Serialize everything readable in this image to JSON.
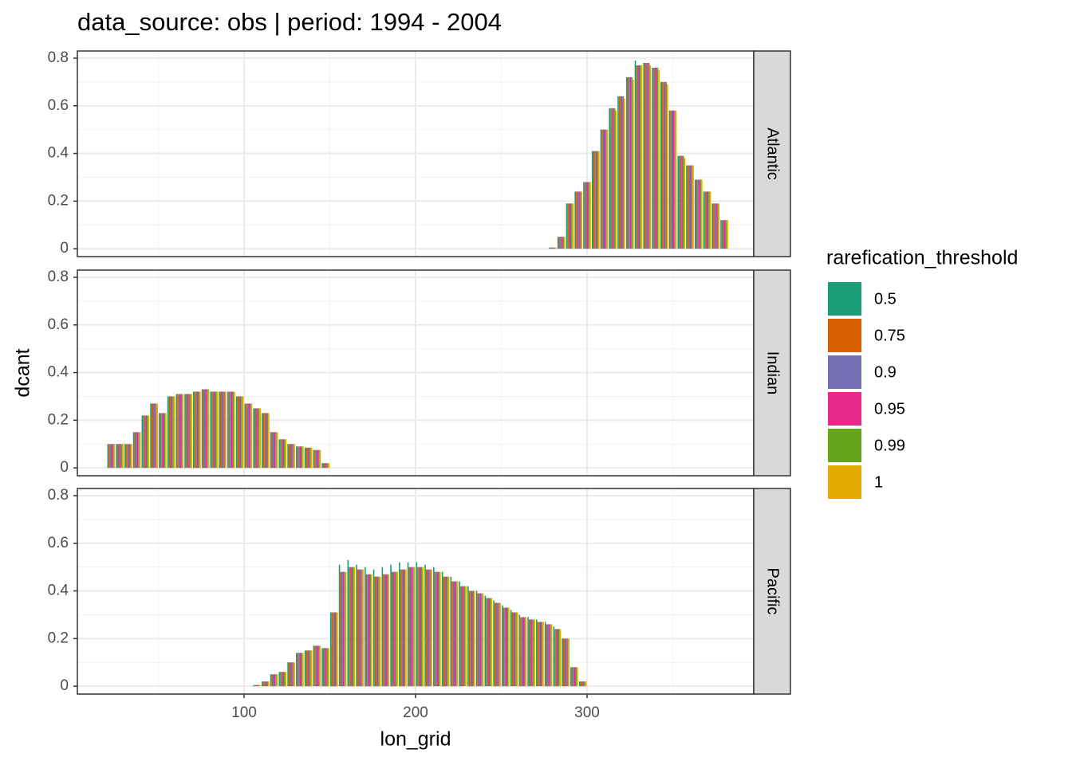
{
  "title": "data_source: obs | period: 1994 - 2004",
  "x_label": "lon_grid",
  "y_label": "dcant",
  "legend_title": "rarefication_threshold",
  "chart_data": [
    {
      "type": "bar",
      "strip": "Atlantic",
      "xlim": [
        2.8,
        397.2
      ],
      "xticks": [
        100,
        200,
        300
      ],
      "ylim": [
        -0.033,
        0.83
      ],
      "yticks": [
        0,
        0.2,
        0.4,
        0.6,
        0.8
      ],
      "grid": true,
      "x": [
        280,
        285,
        290,
        295,
        300,
        305,
        310,
        315,
        320,
        325,
        330,
        335,
        340,
        345,
        350,
        355,
        360,
        365,
        370,
        375,
        380
      ],
      "series": [
        {
          "name": "0.5",
          "color": "#1B9E77",
          "values": [
            0.005,
            0.05,
            0.19,
            0.24,
            0.28,
            0.41,
            0.5,
            0.59,
            0.64,
            0.72,
            0.79,
            0.78,
            0.76,
            0.7,
            0.58,
            0.39,
            0.35,
            0.29,
            0.24,
            0.19,
            0.12
          ]
        },
        {
          "name": "0.75",
          "color": "#D95F02",
          "values": [
            0.005,
            0.05,
            0.19,
            0.24,
            0.28,
            0.41,
            0.5,
            0.59,
            0.64,
            0.72,
            0.77,
            0.78,
            0.76,
            0.7,
            0.58,
            0.39,
            0.35,
            0.29,
            0.24,
            0.19,
            0.12
          ]
        },
        {
          "name": "0.9",
          "color": "#7570B3",
          "values": [
            0.005,
            0.05,
            0.19,
            0.24,
            0.28,
            0.41,
            0.5,
            0.59,
            0.64,
            0.72,
            0.77,
            0.78,
            0.76,
            0.7,
            0.58,
            0.39,
            0.35,
            0.29,
            0.24,
            0.19,
            0.12
          ]
        },
        {
          "name": "0.95",
          "color": "#E7298A",
          "values": [
            0.005,
            0.05,
            0.19,
            0.24,
            0.28,
            0.41,
            0.5,
            0.59,
            0.64,
            0.72,
            0.77,
            0.78,
            0.76,
            0.7,
            0.58,
            0.39,
            0.35,
            0.29,
            0.24,
            0.19,
            0.12
          ]
        },
        {
          "name": "0.99",
          "color": "#66A61E",
          "values": [
            0.005,
            0.05,
            0.19,
            0.24,
            0.28,
            0.41,
            0.5,
            0.59,
            0.64,
            0.72,
            0.77,
            0.78,
            0.76,
            0.7,
            0.58,
            0.39,
            0.35,
            0.29,
            0.24,
            0.19,
            0.12
          ]
        },
        {
          "name": "1",
          "color": "#E6AB02",
          "values": [
            0.005,
            0.05,
            0.19,
            0.24,
            0.28,
            0.41,
            0.5,
            0.58,
            0.63,
            0.71,
            0.77,
            0.77,
            0.75,
            0.69,
            0.58,
            0.38,
            0.35,
            0.29,
            0.24,
            0.19,
            0.12
          ]
        }
      ]
    },
    {
      "type": "bar",
      "strip": "Indian",
      "xlim": [
        2.8,
        397.2
      ],
      "xticks": [
        100,
        200,
        300
      ],
      "ylim": [
        -0.033,
        0.83
      ],
      "yticks": [
        0,
        0.2,
        0.4,
        0.6,
        0.8
      ],
      "grid": true,
      "x": [
        22.5,
        27.5,
        32.5,
        37.5,
        42.5,
        47.5,
        52.5,
        57.5,
        62.5,
        67.5,
        72.5,
        77.5,
        82.5,
        87.5,
        92.5,
        97.5,
        102.5,
        107.5,
        112.5,
        117.5,
        122.5,
        127.5,
        132.5,
        137.5,
        142.5,
        147.5
      ],
      "series": [
        {
          "name": "0.5",
          "color": "#1B9E77",
          "values": [
            0.1,
            0.1,
            0.1,
            0.15,
            0.22,
            0.27,
            0.23,
            0.3,
            0.31,
            0.31,
            0.32,
            0.33,
            0.32,
            0.32,
            0.32,
            0.3,
            0.27,
            0.25,
            0.23,
            0.15,
            0.12,
            0.1,
            0.09,
            0.085,
            0.075,
            0.02
          ]
        },
        {
          "name": "0.75",
          "color": "#D95F02",
          "values": [
            0.1,
            0.1,
            0.1,
            0.15,
            0.22,
            0.27,
            0.23,
            0.3,
            0.31,
            0.31,
            0.32,
            0.33,
            0.32,
            0.32,
            0.32,
            0.3,
            0.27,
            0.25,
            0.23,
            0.15,
            0.12,
            0.1,
            0.09,
            0.085,
            0.075,
            0.02
          ]
        },
        {
          "name": "0.9",
          "color": "#7570B3",
          "values": [
            0.1,
            0.1,
            0.1,
            0.15,
            0.22,
            0.27,
            0.23,
            0.3,
            0.31,
            0.31,
            0.32,
            0.33,
            0.32,
            0.32,
            0.32,
            0.3,
            0.27,
            0.25,
            0.23,
            0.15,
            0.12,
            0.1,
            0.09,
            0.085,
            0.075,
            0.02
          ]
        },
        {
          "name": "0.95",
          "color": "#E7298A",
          "values": [
            0.1,
            0.1,
            0.1,
            0.15,
            0.22,
            0.27,
            0.23,
            0.3,
            0.31,
            0.31,
            0.32,
            0.33,
            0.32,
            0.32,
            0.32,
            0.3,
            0.27,
            0.25,
            0.23,
            0.15,
            0.12,
            0.1,
            0.09,
            0.085,
            0.075,
            0.02
          ]
        },
        {
          "name": "0.99",
          "color": "#66A61E",
          "values": [
            0.1,
            0.1,
            0.1,
            0.15,
            0.22,
            0.27,
            0.23,
            0.3,
            0.31,
            0.31,
            0.32,
            0.33,
            0.32,
            0.32,
            0.32,
            0.3,
            0.27,
            0.25,
            0.23,
            0.15,
            0.12,
            0.1,
            0.09,
            0.085,
            0.075,
            0.02
          ]
        },
        {
          "name": "1",
          "color": "#E6AB02",
          "values": [
            0.1,
            0.1,
            0.1,
            0.15,
            0.22,
            0.27,
            0.23,
            0.3,
            0.31,
            0.31,
            0.32,
            0.33,
            0.32,
            0.32,
            0.32,
            0.3,
            0.27,
            0.25,
            0.23,
            0.15,
            0.12,
            0.1,
            0.09,
            0.085,
            0.075,
            0.02
          ]
        }
      ]
    },
    {
      "type": "bar",
      "strip": "Pacific",
      "xlim": [
        2.8,
        397.2
      ],
      "xticks": [
        100,
        200,
        300
      ],
      "ylim": [
        -0.033,
        0.83
      ],
      "yticks": [
        0,
        0.2,
        0.4,
        0.6,
        0.8
      ],
      "grid": true,
      "x": [
        107.5,
        112.5,
        117.5,
        122.5,
        127.5,
        132.5,
        137.5,
        142.5,
        147.5,
        152.5,
        157.5,
        162.5,
        167.5,
        172.5,
        177.5,
        182.5,
        187.5,
        192.5,
        197.5,
        202.5,
        207.5,
        212.5,
        217.5,
        222.5,
        227.5,
        232.5,
        237.5,
        242.5,
        247.5,
        252.5,
        257.5,
        262.5,
        267.5,
        272.5,
        277.5,
        282.5,
        287.5,
        292.5,
        297.5
      ],
      "series": [
        {
          "name": "0.5",
          "color": "#1B9E77",
          "values": [
            0.005,
            0.02,
            0.05,
            0.06,
            0.1,
            0.14,
            0.15,
            0.17,
            0.16,
            0.31,
            0.51,
            0.53,
            0.51,
            0.5,
            0.49,
            0.5,
            0.51,
            0.52,
            0.52,
            0.52,
            0.51,
            0.5,
            0.48,
            0.46,
            0.44,
            0.42,
            0.4,
            0.38,
            0.36,
            0.34,
            0.32,
            0.3,
            0.29,
            0.28,
            0.27,
            0.25,
            0.2,
            0.08,
            0.02
          ]
        },
        {
          "name": "0.75",
          "color": "#D95F02",
          "values": [
            0.005,
            0.02,
            0.05,
            0.06,
            0.1,
            0.14,
            0.15,
            0.17,
            0.16,
            0.31,
            0.48,
            0.5,
            0.49,
            0.47,
            0.46,
            0.47,
            0.48,
            0.49,
            0.5,
            0.5,
            0.49,
            0.48,
            0.46,
            0.44,
            0.42,
            0.4,
            0.39,
            0.37,
            0.35,
            0.33,
            0.31,
            0.29,
            0.28,
            0.27,
            0.26,
            0.24,
            0.2,
            0.08,
            0.02
          ]
        },
        {
          "name": "0.9",
          "color": "#7570B3",
          "values": [
            0.005,
            0.02,
            0.05,
            0.06,
            0.1,
            0.14,
            0.15,
            0.17,
            0.16,
            0.31,
            0.48,
            0.5,
            0.49,
            0.47,
            0.46,
            0.47,
            0.48,
            0.49,
            0.5,
            0.5,
            0.49,
            0.48,
            0.46,
            0.44,
            0.42,
            0.4,
            0.39,
            0.37,
            0.35,
            0.33,
            0.31,
            0.29,
            0.28,
            0.27,
            0.26,
            0.24,
            0.2,
            0.08,
            0.02
          ]
        },
        {
          "name": "0.95",
          "color": "#E7298A",
          "values": [
            0.005,
            0.02,
            0.05,
            0.06,
            0.1,
            0.14,
            0.15,
            0.17,
            0.16,
            0.31,
            0.48,
            0.5,
            0.49,
            0.47,
            0.46,
            0.47,
            0.48,
            0.49,
            0.5,
            0.5,
            0.49,
            0.48,
            0.46,
            0.44,
            0.42,
            0.4,
            0.39,
            0.37,
            0.35,
            0.33,
            0.31,
            0.29,
            0.28,
            0.27,
            0.26,
            0.24,
            0.2,
            0.08,
            0.02
          ]
        },
        {
          "name": "0.99",
          "color": "#66A61E",
          "values": [
            0.005,
            0.02,
            0.05,
            0.06,
            0.1,
            0.14,
            0.15,
            0.17,
            0.16,
            0.31,
            0.48,
            0.5,
            0.49,
            0.47,
            0.46,
            0.47,
            0.48,
            0.49,
            0.5,
            0.5,
            0.49,
            0.48,
            0.46,
            0.44,
            0.42,
            0.4,
            0.39,
            0.37,
            0.35,
            0.33,
            0.31,
            0.29,
            0.28,
            0.27,
            0.26,
            0.24,
            0.2,
            0.08,
            0.02
          ]
        },
        {
          "name": "1",
          "color": "#E6AB02",
          "values": [
            0.005,
            0.02,
            0.05,
            0.06,
            0.1,
            0.14,
            0.15,
            0.17,
            0.16,
            0.31,
            0.48,
            0.5,
            0.49,
            0.47,
            0.46,
            0.47,
            0.48,
            0.49,
            0.5,
            0.5,
            0.49,
            0.48,
            0.46,
            0.44,
            0.42,
            0.4,
            0.39,
            0.37,
            0.35,
            0.33,
            0.31,
            0.29,
            0.28,
            0.27,
            0.26,
            0.24,
            0.2,
            0.08,
            0.02
          ]
        }
      ]
    }
  ]
}
